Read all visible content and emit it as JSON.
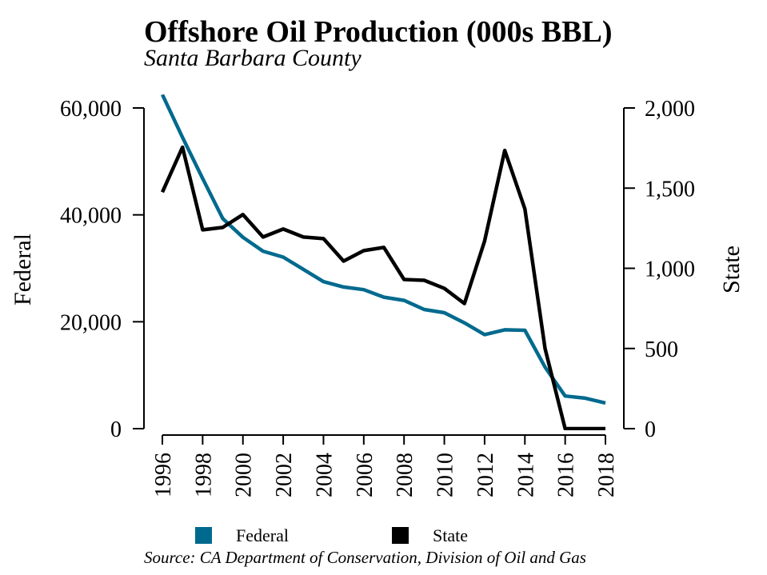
{
  "chart_data": {
    "type": "line",
    "title": "Offshore Oil Production (000s BBL)",
    "subtitle": "Santa Barbara County",
    "source": "Source: CA Department of Conservation, Division of Oil and Gas",
    "x": [
      1996,
      1997,
      1998,
      1999,
      2000,
      2001,
      2002,
      2003,
      2004,
      2005,
      2006,
      2007,
      2008,
      2009,
      2010,
      2011,
      2012,
      2013,
      2014,
      2015,
      2016,
      2017,
      2018
    ],
    "x_ticks": [
      "1996",
      "1998",
      "2000",
      "2002",
      "2004",
      "2006",
      "2008",
      "2010",
      "2012",
      "2014",
      "2016",
      "2018"
    ],
    "y_left": {
      "label": "Federal",
      "ylim": [
        0,
        60000
      ],
      "ticks": [
        0,
        20000,
        40000,
        60000
      ],
      "tick_labels": [
        "0",
        "20,000",
        "40,000",
        "60,000"
      ]
    },
    "y_right": {
      "label": "State",
      "ylim": [
        0,
        2000
      ],
      "ticks": [
        0,
        500,
        1000,
        1500,
        2000
      ],
      "tick_labels": [
        "0",
        "500",
        "1,000",
        "1,500",
        "2,000"
      ]
    },
    "series": [
      {
        "name": "Federal",
        "axis": "left",
        "color": "#006a8e",
        "values": [
          62500,
          54500,
          46800,
          39300,
          35800,
          33200,
          32100,
          29800,
          27500,
          26500,
          26000,
          24600,
          24000,
          22300,
          21700,
          19800,
          17600,
          18500,
          18400,
          11500,
          6100,
          5700,
          4800
        ]
      },
      {
        "name": "State",
        "axis": "right",
        "color": "#000000",
        "values": [
          1475,
          1755,
          1240,
          1255,
          1335,
          1195,
          1245,
          1195,
          1185,
          1045,
          1110,
          1130,
          930,
          925,
          875,
          780,
          1170,
          1735,
          1370,
          500,
          0,
          0,
          0
        ]
      }
    ],
    "grid": false,
    "legend": "bottom"
  }
}
